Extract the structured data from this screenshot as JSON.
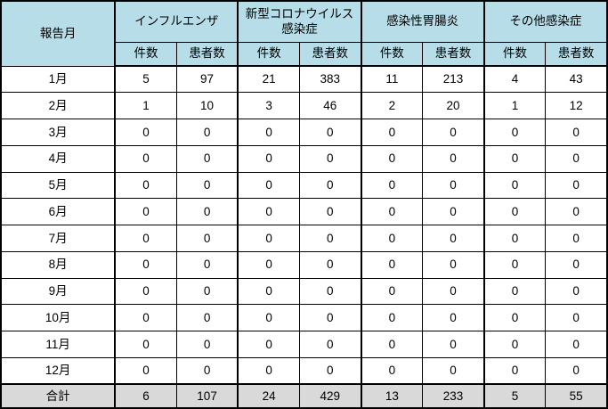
{
  "table": {
    "corner_header": "報告月",
    "groups": [
      {
        "id": "influenza",
        "label": "インフルエンザ"
      },
      {
        "id": "covid19",
        "label": "新型コロナウイルス\n感染症"
      },
      {
        "id": "gastroenteritis",
        "label": "感染性胃腸炎"
      },
      {
        "id": "other",
        "label": "その他感染症"
      }
    ],
    "sub_headers": [
      "件数",
      "患者数"
    ],
    "rows": [
      {
        "month": "1月",
        "values": [
          5,
          97,
          21,
          383,
          11,
          213,
          4,
          43
        ]
      },
      {
        "month": "2月",
        "values": [
          1,
          10,
          3,
          46,
          2,
          20,
          1,
          12
        ]
      },
      {
        "month": "3月",
        "values": [
          0,
          0,
          0,
          0,
          0,
          0,
          0,
          0
        ]
      },
      {
        "month": "4月",
        "values": [
          0,
          0,
          0,
          0,
          0,
          0,
          0,
          0
        ]
      },
      {
        "month": "5月",
        "values": [
          0,
          0,
          0,
          0,
          0,
          0,
          0,
          0
        ]
      },
      {
        "month": "6月",
        "values": [
          0,
          0,
          0,
          0,
          0,
          0,
          0,
          0
        ]
      },
      {
        "month": "7月",
        "values": [
          0,
          0,
          0,
          0,
          0,
          0,
          0,
          0
        ]
      },
      {
        "month": "8月",
        "values": [
          0,
          0,
          0,
          0,
          0,
          0,
          0,
          0
        ]
      },
      {
        "month": "9月",
        "values": [
          0,
          0,
          0,
          0,
          0,
          0,
          0,
          0
        ]
      },
      {
        "month": "10月",
        "values": [
          0,
          0,
          0,
          0,
          0,
          0,
          0,
          0
        ]
      },
      {
        "month": "11月",
        "values": [
          0,
          0,
          0,
          0,
          0,
          0,
          0,
          0
        ]
      },
      {
        "month": "12月",
        "values": [
          0,
          0,
          0,
          0,
          0,
          0,
          0,
          0
        ]
      }
    ],
    "total": {
      "label": "合計",
      "values": [
        6,
        107,
        24,
        429,
        13,
        233,
        5,
        55
      ]
    },
    "colors": {
      "header_bg": "#B7DEE8",
      "total_bg": "#D9D9D9",
      "border": "#000000",
      "body_bg": "#FFFFFF"
    }
  }
}
